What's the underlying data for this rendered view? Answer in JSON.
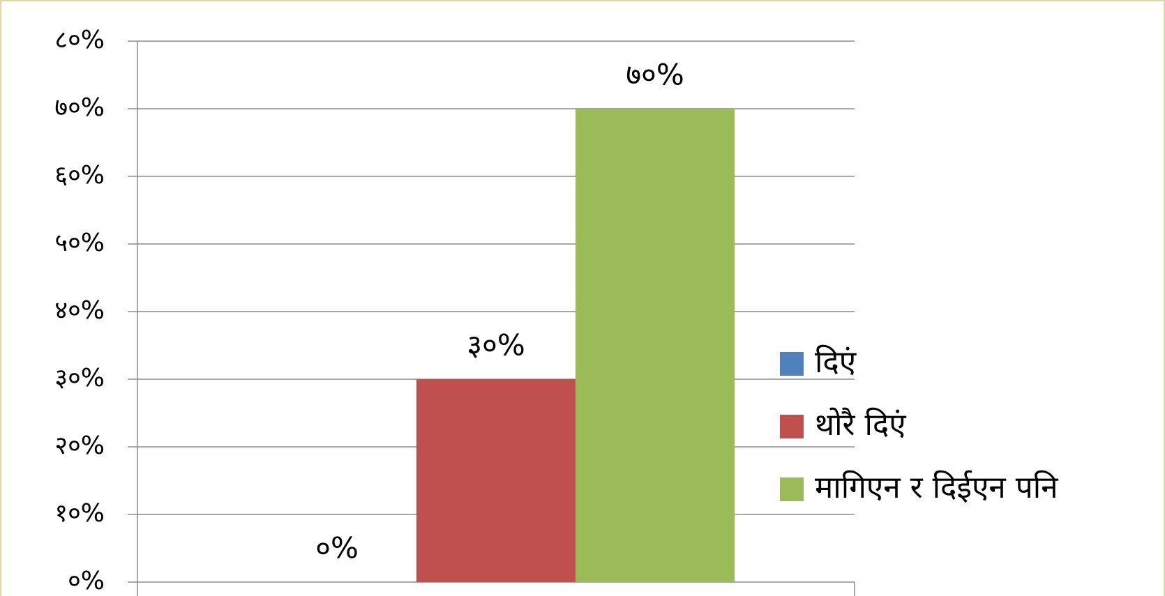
{
  "chart_data": {
    "type": "bar",
    "categories": [
      null
    ],
    "series": [
      {
        "name": "दिएं",
        "color": "#4f81bd",
        "values": [
          0
        ],
        "value_labels": [
          "०%"
        ]
      },
      {
        "name": "थोरै दिएं",
        "color": "#c0504d",
        "values": [
          30
        ],
        "value_labels": [
          "३०%"
        ]
      },
      {
        "name": "मागिएन र दिईएन पनि",
        "color": "#9bbb59",
        "values": [
          70
        ],
        "value_labels": [
          "७०%"
        ]
      }
    ],
    "ylim": [
      0,
      80
    ],
    "yticks": [
      {
        "value": 0,
        "label": "०%"
      },
      {
        "value": 10,
        "label": "१०%"
      },
      {
        "value": 20,
        "label": "२०%"
      },
      {
        "value": 30,
        "label": "३०%"
      },
      {
        "value": 40,
        "label": "४०%"
      },
      {
        "value": 50,
        "label": "५०%"
      },
      {
        "value": 60,
        "label": "६०%"
      },
      {
        "value": 70,
        "label": "७०%"
      },
      {
        "value": 80,
        "label": "८०%"
      }
    ],
    "grid": true,
    "legend": "right"
  }
}
